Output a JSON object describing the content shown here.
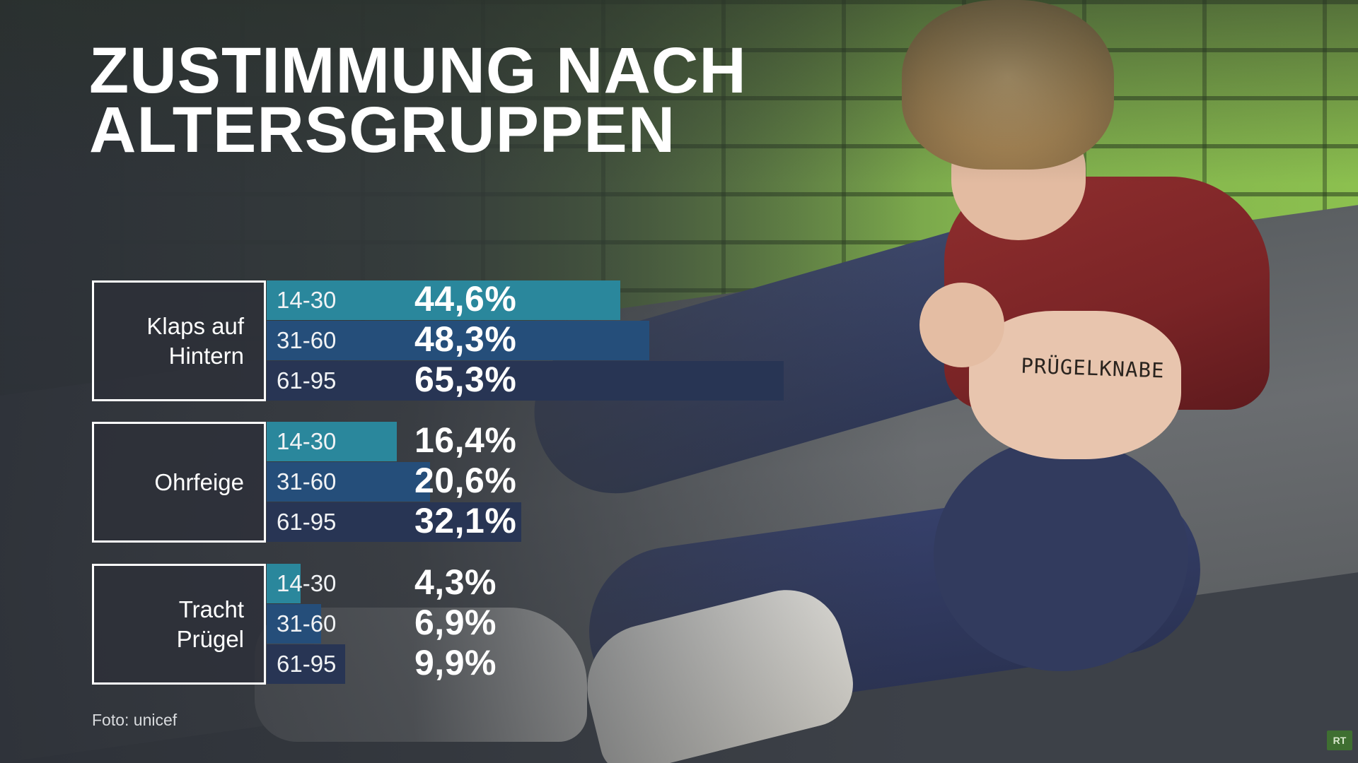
{
  "title_lines": [
    "ZUSTIMMUNG NACH",
    "ALTERSGRUPPEN"
  ],
  "source": "Foto: unicef",
  "logo_text": "RT",
  "photo_text": "PRÜGELKNABE",
  "colors": {
    "14-30": "#2a879c",
    "31-60": "#254e7a",
    "61-95": "#283554",
    "box_border": "#ffffff"
  },
  "chart_data": {
    "type": "bar",
    "orientation": "horizontal",
    "title": "ZUSTIMMUNG NACH ALTERSGRUPPEN",
    "xlim": [
      0,
      100
    ],
    "categories": [
      "14-30",
      "31-60",
      "61-95"
    ],
    "groups": [
      {
        "label": "Klaps auf Hintern",
        "values": [
          44.6,
          48.3,
          65.3
        ],
        "value_labels": [
          "44,6%",
          "48,3%",
          "65,3%"
        ]
      },
      {
        "label": "Ohrfeige",
        "values": [
          16.4,
          20.6,
          32.1
        ],
        "value_labels": [
          "16,4%",
          "20,6%",
          "32,1%"
        ]
      },
      {
        "label": "Tracht Prügel",
        "values": [
          4.3,
          6.9,
          9.9
        ],
        "value_labels": [
          "4,3%",
          "6,9%",
          "9,9%"
        ]
      }
    ]
  }
}
